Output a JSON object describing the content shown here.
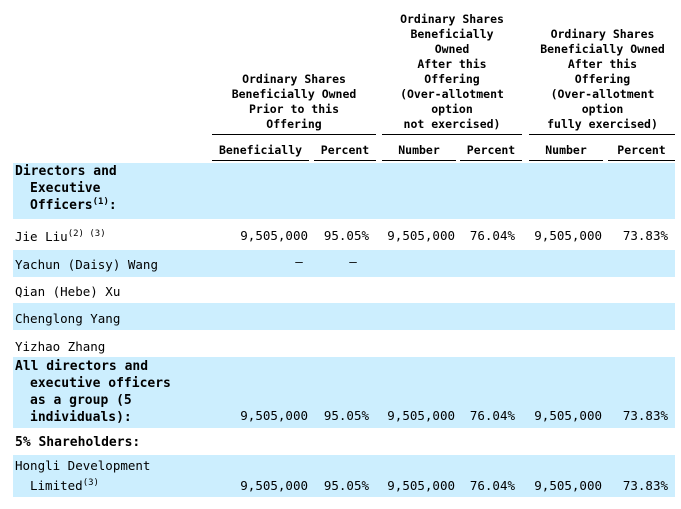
{
  "headers": {
    "group1": "Ordinary Shares\nBeneficially Owned\nPrior to this\nOffering",
    "group2": "Ordinary Shares\nBeneficially\nOwned\nAfter this\nOffering\n(Over-allotment\noption\nnot exercised)",
    "group3": "Ordinary Shares\nBeneficially Owned\nAfter this\nOffering\n(Over-allotment\noption\nfully exercised)",
    "columns": [
      "Beneficially",
      "Percent",
      "Number",
      "Percent",
      "Number",
      "Percent"
    ]
  },
  "sections": {
    "directors_line1": "Directors and",
    "directors_line2": "Executive",
    "directors_line3": "Officers",
    "directors_note": "(1)",
    "directors_colon": ":",
    "shareholders": "5% Shareholders:"
  },
  "rows": [
    {
      "name": "Jie Liu",
      "note": "(2) (3)",
      "values": [
        "9,505,000",
        "95.05%",
        "9,505,000",
        "76.04%",
        "9,505,000",
        "73.83%"
      ]
    },
    {
      "name": "Yachun (Daisy) Wang",
      "values": [
        "—",
        "—"
      ]
    },
    {
      "name": "Qian (Hebe) Xu"
    },
    {
      "name": "Chenglong Yang"
    },
    {
      "name": "Yizhao Zhang"
    },
    {
      "name_lines": [
        "All directors and",
        "executive officers",
        "as a group (5",
        "individuals):"
      ],
      "values": [
        "9,505,000",
        "95.05%",
        "9,505,000",
        "76.04%",
        "9,505,000",
        "73.83%"
      ]
    },
    {
      "name_lines": [
        "Hongli Development",
        "Limited"
      ],
      "note": "(3)",
      "values": [
        "9,505,000",
        "95.05%",
        "9,505,000",
        "76.04%",
        "9,505,000",
        "73.83%"
      ]
    }
  ]
}
